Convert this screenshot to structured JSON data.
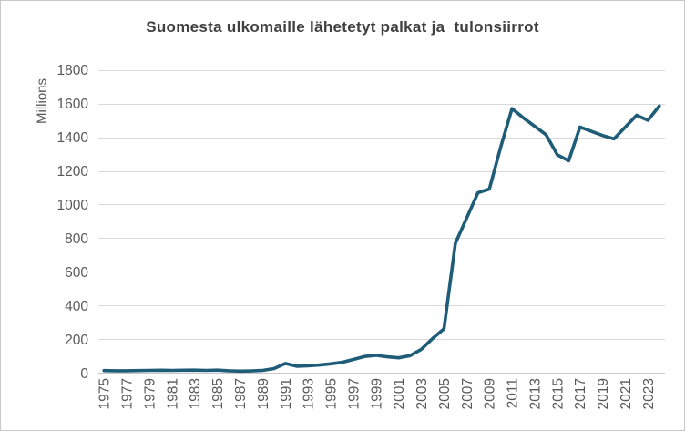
{
  "frame": {
    "background": "#ffffff",
    "border_color": "#c8c8c8"
  },
  "chart_data": {
    "type": "line",
    "title": "Suomesta ulkomaille lähetetyt palkat ja  tulonsiirrot",
    "ylabel": "Millions",
    "xlabel": "",
    "grid": "horizontal",
    "legend": "none",
    "ylim": [
      0,
      1800
    ],
    "yticks": [
      0,
      200,
      400,
      600,
      800,
      1000,
      1200,
      1400,
      1600,
      1800
    ],
    "xtick_labels": [
      "1975",
      "1977",
      "1979",
      "1981",
      "1983",
      "1985",
      "1987",
      "1989",
      "1991",
      "1993",
      "1995",
      "1997",
      "1999",
      "2001",
      "2003",
      "2005",
      "2007",
      "2009",
      "2011",
      "2013",
      "2015",
      "2017",
      "2019",
      "2021",
      "2023"
    ],
    "x": [
      1975,
      1976,
      1977,
      1978,
      1979,
      1980,
      1981,
      1982,
      1983,
      1984,
      1985,
      1986,
      1987,
      1988,
      1989,
      1990,
      1991,
      1992,
      1993,
      1994,
      1995,
      1996,
      1997,
      1998,
      1999,
      2000,
      2001,
      2002,
      2003,
      2004,
      2005,
      2006,
      2007,
      2008,
      2009,
      2010,
      2011,
      2012,
      2013,
      2014,
      2015,
      2016,
      2017,
      2018,
      2019,
      2020,
      2021,
      2022,
      2023,
      2024
    ],
    "values": [
      14,
      13,
      13,
      14,
      15,
      16,
      15,
      16,
      17,
      15,
      17,
      13,
      11,
      12,
      15,
      26,
      56,
      40,
      42,
      47,
      54,
      63,
      80,
      98,
      105,
      96,
      90,
      103,
      140,
      205,
      262,
      770,
      920,
      1070,
      1092,
      1340,
      1570,
      1515,
      1465,
      1415,
      1295,
      1260,
      1460,
      1435,
      1410,
      1390,
      1460,
      1530,
      1500,
      1585
    ],
    "line_color": "#1e5c78",
    "gridline_color": "#d9d9d9",
    "axis_line_color": "#c9c9c9",
    "tick_label_color": "#595959",
    "title_color": "#404040",
    "ylabel_color": "#595959"
  }
}
